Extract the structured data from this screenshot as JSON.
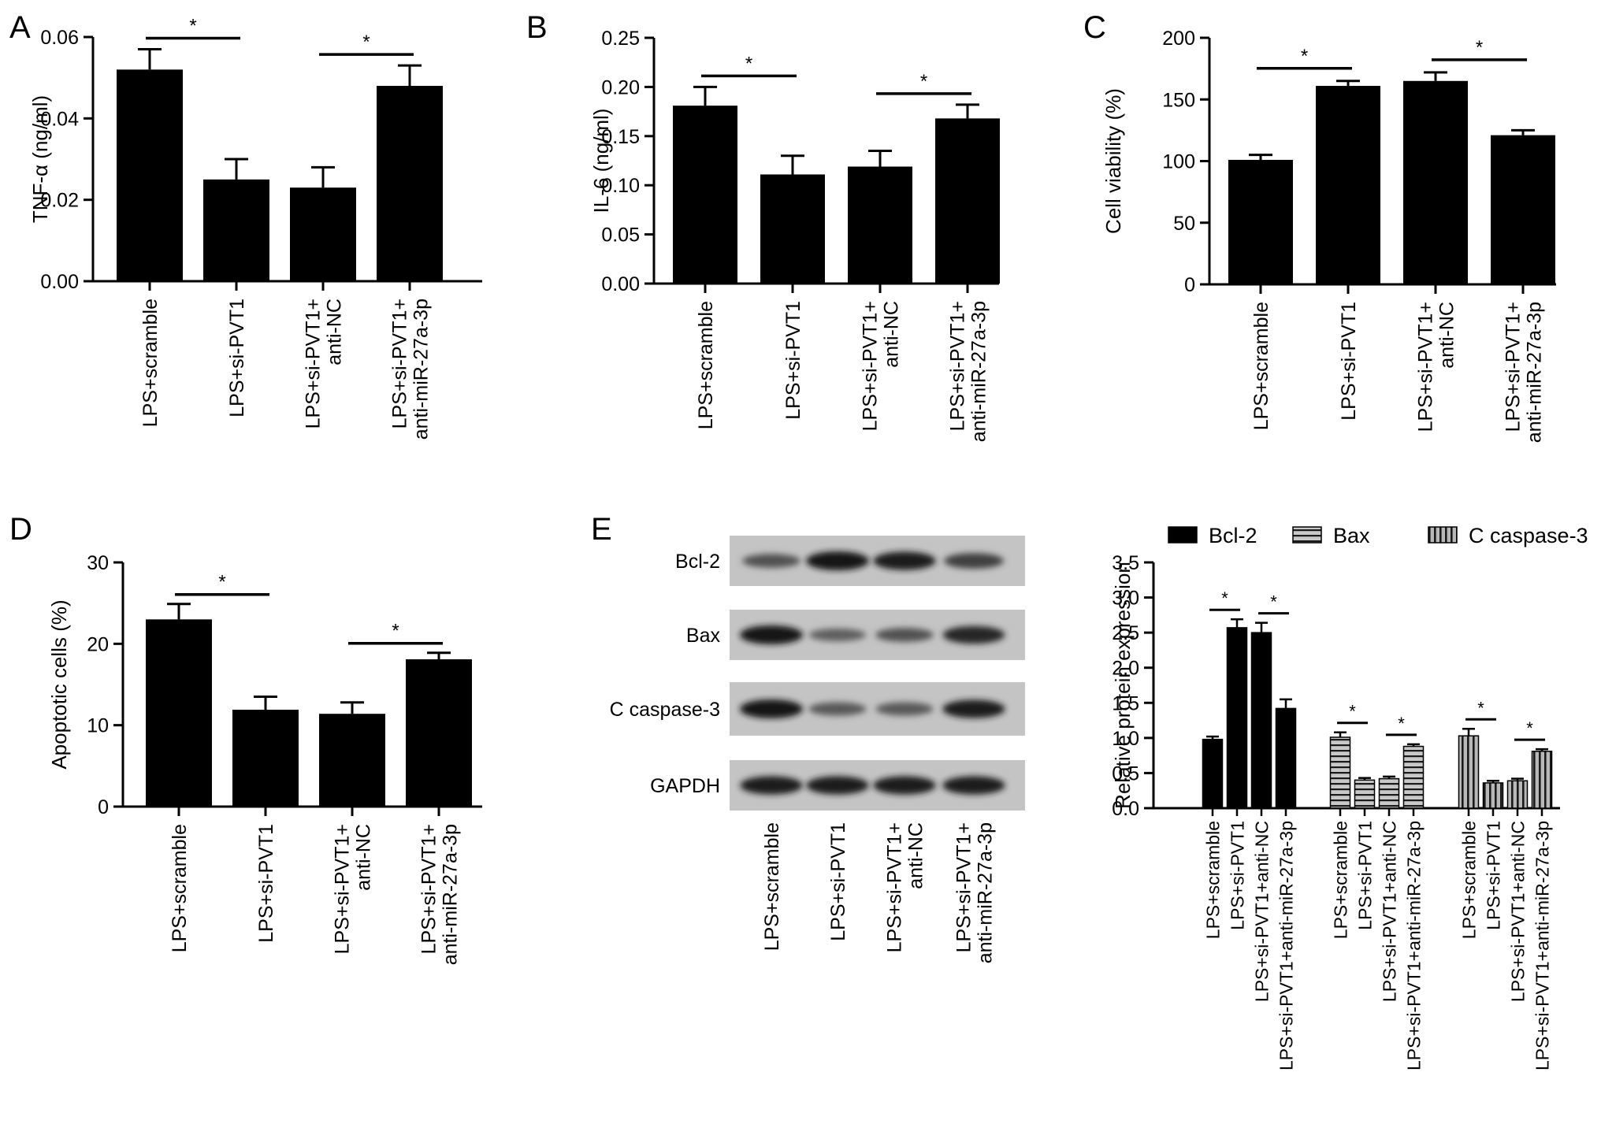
{
  "chart_data": [
    {
      "panel": "A",
      "type": "bar",
      "ylabel": "TNF-α (ng/ml)",
      "ylim": [
        0,
        0.06
      ],
      "yticks": [
        "0.00",
        "0.02",
        "0.04",
        "0.06"
      ],
      "categories": [
        "LPS+scramble",
        "LPS+si-PVT1",
        "LPS+si-PVT1+\nanti-NC",
        "LPS+si-PVT1+\nanti-miR-27a-3p"
      ],
      "values": [
        0.052,
        0.025,
        0.023,
        0.048
      ],
      "errors": [
        0.005,
        0.005,
        0.005,
        0.005
      ],
      "significance": [
        {
          "from": 0,
          "to": 1,
          "label": "*"
        },
        {
          "from": 2,
          "to": 3,
          "label": "*"
        }
      ]
    },
    {
      "panel": "B",
      "type": "bar",
      "ylabel": "IL-6 (ng/ml)",
      "ylim": [
        0,
        0.25
      ],
      "yticks": [
        "0.00",
        "0.05",
        "0.10",
        "0.15",
        "0.20",
        "0.25"
      ],
      "categories": [
        "LPS+scramble",
        "LPS+si-PVT1",
        "LPS+si-PVT1+\nanti-NC",
        "LPS+si-PVT1+\nanti-miR-27a-3p"
      ],
      "values": [
        0.181,
        0.111,
        0.119,
        0.168
      ],
      "errors": [
        0.019,
        0.019,
        0.016,
        0.014
      ],
      "significance": [
        {
          "from": 0,
          "to": 1,
          "label": "*"
        },
        {
          "from": 2,
          "to": 3,
          "label": "*"
        }
      ]
    },
    {
      "panel": "C",
      "type": "bar",
      "ylabel": "Cell viability (%)",
      "ylim": [
        0,
        200
      ],
      "yticks": [
        "0",
        "50",
        "100",
        "150",
        "200"
      ],
      "categories": [
        "LPS+scramble",
        "LPS+si-PVT1",
        "LPS+si-PVT1+\nanti-NC",
        "LPS+si-PVT1+\nanti-miR-27a-3p"
      ],
      "values": [
        101,
        161,
        165,
        121
      ],
      "errors": [
        4,
        4,
        7,
        4
      ],
      "significance": [
        {
          "from": 0,
          "to": 1,
          "label": "*"
        },
        {
          "from": 2,
          "to": 3,
          "label": "*"
        }
      ]
    },
    {
      "panel": "D",
      "type": "bar",
      "ylabel": "Apoptotic cells (%)",
      "ylim": [
        0,
        30
      ],
      "yticks": [
        "0",
        "10",
        "20",
        "30"
      ],
      "categories": [
        "LPS+scramble",
        "LPS+si-PVT1",
        "LPS+si-PVT1+\nanti-NC",
        "LPS+si-PVT1+\nanti-miR-27a-3p"
      ],
      "values": [
        23.0,
        11.9,
        11.4,
        18.1
      ],
      "errors": [
        1.9,
        1.6,
        1.4,
        0.8
      ],
      "significance": [
        {
          "from": 0,
          "to": 1,
          "label": "*"
        },
        {
          "from": 2,
          "to": 3,
          "label": "*"
        }
      ]
    },
    {
      "panel": "E",
      "type": "bar",
      "ylabel": "Relative protein expression",
      "ylim": [
        0,
        3.5
      ],
      "yticks": [
        "0.0",
        "0.5",
        "1.0",
        "1.5",
        "2.0",
        "2.5",
        "3.0",
        "3.5"
      ],
      "legend_position": "top",
      "categories": [
        "LPS+scramble",
        "LPS+si-PVT1",
        "LPS+si-PVT1+anti-NC",
        "LPS+si-PVT1+anti-miR-27a-3p"
      ],
      "series": [
        {
          "name": "Bcl-2",
          "pattern": "solid",
          "values": [
            0.98,
            2.57,
            2.5,
            1.42
          ],
          "errors": [
            0.04,
            0.12,
            0.14,
            0.13
          ]
        },
        {
          "name": "Bax",
          "pattern": "horizontal",
          "values": [
            1.01,
            0.4,
            0.42,
            0.88
          ],
          "errors": [
            0.07,
            0.03,
            0.03,
            0.03
          ]
        },
        {
          "name": "C caspase-3",
          "pattern": "vertical",
          "values": [
            1.03,
            0.36,
            0.39,
            0.81
          ],
          "errors": [
            0.1,
            0.03,
            0.03,
            0.03
          ]
        }
      ],
      "significance": [
        {
          "series": 0,
          "from": 0,
          "to": 1,
          "label": "*"
        },
        {
          "series": 0,
          "from": 2,
          "to": 3,
          "label": "*"
        },
        {
          "series": 1,
          "from": 0,
          "to": 1,
          "label": "*"
        },
        {
          "series": 1,
          "from": 2,
          "to": 3,
          "label": "*"
        },
        {
          "series": 2,
          "from": 0,
          "to": 1,
          "label": "*"
        },
        {
          "series": 2,
          "from": 2,
          "to": 3,
          "label": "*"
        }
      ]
    }
  ],
  "western_blot": {
    "panel": "E",
    "rows": [
      "Bcl-2",
      "Bax",
      "C caspase-3",
      "GAPDH"
    ],
    "lanes": [
      "LPS+scramble",
      "LPS+si-PVT1",
      "LPS+si-PVT1+\nanti-NC",
      "LPS+si-PVT1+\nanti-miR-27a-3p"
    ],
    "band_intensity": [
      [
        0.55,
        1.0,
        0.95,
        0.7
      ],
      [
        1.0,
        0.45,
        0.55,
        0.9
      ],
      [
        1.0,
        0.5,
        0.5,
        0.95
      ],
      [
        0.95,
        0.95,
        0.95,
        0.95
      ]
    ]
  }
}
